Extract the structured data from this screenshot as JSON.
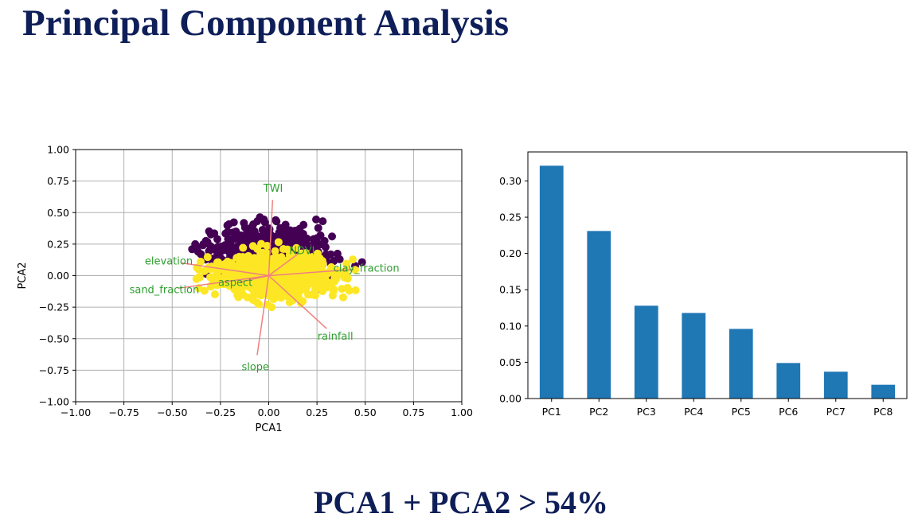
{
  "slide": {
    "title": "Principal Component Analysis",
    "footer": "PCA1 + PCA2 > 54%"
  },
  "colors": {
    "title": "#0e1e58",
    "cluster_a": "#440154",
    "cluster_b": "#fde725",
    "loading_arrow": "#f08080",
    "loading_label": "#2e9e2e",
    "bar": "#1f77b4",
    "grid": "#b0b0b0"
  },
  "chart_data": [
    {
      "type": "scatter",
      "xlabel": "PCA1",
      "ylabel": "PCA2",
      "xlim": [
        -1.0,
        1.0
      ],
      "ylim": [
        -1.0,
        1.0
      ],
      "grid": true,
      "x_ticks": [
        "−1.00",
        "−0.75",
        "−0.50",
        "−0.25",
        "0.00",
        "0.25",
        "0.50",
        "0.75",
        "1.00"
      ],
      "y_ticks": [
        "1.00",
        "0.75",
        "0.50",
        "0.25",
        "0.00",
        "−0.25",
        "−0.50",
        "−0.75",
        "−1.00"
      ],
      "point_clusters": [
        {
          "color": "#440154",
          "center": [
            0.0,
            0.2
          ],
          "spread": [
            0.45,
            0.15
          ],
          "extent_x": [
            -0.48,
            0.52
          ],
          "extent_y": [
            -0.35,
            0.62
          ]
        },
        {
          "color": "#fde725",
          "center": [
            0.05,
            0.0
          ],
          "spread": [
            0.4,
            0.13
          ],
          "extent_x": [
            -0.45,
            0.45
          ],
          "extent_y": [
            -0.38,
            0.32
          ]
        }
      ],
      "loadings": [
        {
          "name": "TWI",
          "x": 0.02,
          "y": 0.6
        },
        {
          "name": "NDVI",
          "x": 0.15,
          "y": 0.17
        },
        {
          "name": "clay_fraction",
          "x": 0.44,
          "y": 0.05
        },
        {
          "name": "elevation",
          "x": -0.45,
          "y": 0.1
        },
        {
          "name": "sand_fraction",
          "x": -0.47,
          "y": -0.1
        },
        {
          "name": "aspect",
          "x": -0.15,
          "y": -0.05
        },
        {
          "name": "rainfall",
          "x": 0.3,
          "y": -0.42
        },
        {
          "name": "slope",
          "x": -0.06,
          "y": -0.63
        }
      ]
    },
    {
      "type": "bar",
      "categories": [
        "PC1",
        "PC2",
        "PC3",
        "PC4",
        "PC5",
        "PC6",
        "PC7",
        "PC8"
      ],
      "values": [
        0.321,
        0.231,
        0.128,
        0.118,
        0.096,
        0.049,
        0.037,
        0.019
      ],
      "ylim": [
        0,
        0.34
      ],
      "y_ticks": [
        "0.00",
        "0.05",
        "0.10",
        "0.15",
        "0.20",
        "0.25",
        "0.30"
      ],
      "grid": false
    }
  ]
}
